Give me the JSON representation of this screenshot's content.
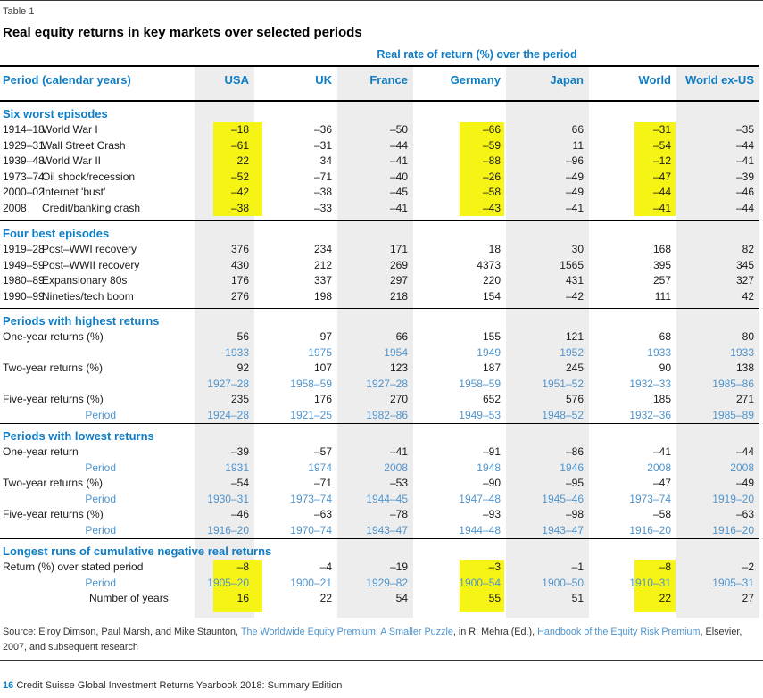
{
  "table": {
    "label": "Table 1",
    "title": "Real equity returns in key markets over selected periods",
    "spanner": "Real rate of return (%) over the period",
    "columns": [
      "Period (calendar years)",
      "USA",
      "UK",
      "France",
      "Germany",
      "Japan",
      "World",
      "World ex-US"
    ],
    "highlight_color": "#f6f414",
    "accent_color": "#0f7dc5",
    "year_color": "#4f94cd",
    "sections": [
      {
        "header": "Six worst episodes",
        "pad": 5,
        "rows": [
          {
            "kind": "event",
            "period": "1914–18:",
            "label": "World War I",
            "values": [
              "–18",
              "–36",
              "–50",
              "–66",
              "66",
              "–31",
              "–35"
            ],
            "hl": [
              0,
              3,
              5
            ]
          },
          {
            "kind": "event",
            "period": "1929–31:",
            "label": "Wall Street Crash",
            "values": [
              "–61",
              "–31",
              "–44",
              "–59",
              "11",
              "–54",
              "–44"
            ],
            "hl": [
              0,
              3,
              5
            ]
          },
          {
            "kind": "event",
            "period": "1939–48:",
            "label": "World War II",
            "values": [
              "22",
              "34",
              "–41",
              "–88",
              "–96",
              "–12",
              "–41"
            ],
            "hl": [
              0,
              3,
              5
            ]
          },
          {
            "kind": "event",
            "period": "1973–74:",
            "label": "Oil shock/recession",
            "values": [
              "–52",
              "–71",
              "–40",
              "–26",
              "–49",
              "–47",
              "–39"
            ],
            "hl": [
              0,
              3,
              5
            ]
          },
          {
            "kind": "event",
            "period": "2000–02:",
            "label": "Internet 'bust'",
            "values": [
              "–42",
              "–38",
              "–45",
              "–58",
              "–49",
              "–44",
              "–46"
            ],
            "hl": [
              0,
              3,
              5
            ]
          },
          {
            "kind": "event",
            "period": "2008",
            "label": "Credit/banking crash",
            "values": [
              "–38",
              "–33",
              "–41",
              "–43",
              "–41",
              "–41",
              "–44"
            ],
            "hl": [
              0,
              3,
              5
            ]
          }
        ]
      },
      {
        "header": "Four best episodes",
        "pad": 4,
        "rows": [
          {
            "kind": "event",
            "period": "1919–28:",
            "label": "Post–WWI recovery",
            "values": [
              "376",
              "234",
              "171",
              "18",
              "30",
              "168",
              "82"
            ]
          },
          {
            "kind": "event",
            "period": "1949–59:",
            "label": "Post–WWII recovery",
            "values": [
              "430",
              "212",
              "269",
              "4373",
              "1565",
              "395",
              "345"
            ]
          },
          {
            "kind": "event",
            "period": "1980–89:",
            "label": "Expansionary 80s",
            "values": [
              "176",
              "337",
              "297",
              "220",
              "431",
              "257",
              "327"
            ]
          },
          {
            "kind": "event",
            "period": "1990–99:",
            "label": "Nineties/tech boom",
            "values": [
              "276",
              "198",
              "218",
              "154",
              "–42",
              "111",
              "42"
            ]
          }
        ]
      },
      {
        "header": "Periods with highest returns",
        "pad": 0,
        "rows": [
          {
            "kind": "metric",
            "label": "One-year returns (%)",
            "values": [
              "56",
              "97",
              "66",
              "155",
              "121",
              "68",
              "80"
            ]
          },
          {
            "kind": "years",
            "label": "",
            "values": [
              "1933",
              "1975",
              "1954",
              "1949",
              "1952",
              "1933",
              "1933"
            ]
          },
          {
            "kind": "metric",
            "label": "Two-year returns (%)",
            "values": [
              "92",
              "107",
              "123",
              "187",
              "245",
              "90",
              "138"
            ]
          },
          {
            "kind": "years",
            "label": "",
            "values": [
              "1927–28",
              "1958–59",
              "1927–28",
              "1958–59",
              "1951–52",
              "1932–33",
              "1985–86"
            ]
          },
          {
            "kind": "metric",
            "label": "Five-year returns (%)",
            "values": [
              "235",
              "176",
              "270",
              "652",
              "576",
              "185",
              "271"
            ]
          },
          {
            "kind": "years",
            "label": "Period",
            "values": [
              "1924–28",
              "1921–25",
              "1982–86",
              "1949–53",
              "1948–52",
              "1932–36",
              "1985–89"
            ]
          }
        ]
      },
      {
        "header": "Periods with lowest returns",
        "pad": 0,
        "rows": [
          {
            "kind": "metric",
            "label": "One-year return",
            "values": [
              "–39",
              "–57",
              "–41",
              "–91",
              "–86",
              "–41",
              "–44"
            ]
          },
          {
            "kind": "years",
            "label": "Period",
            "values": [
              "1931",
              "1974",
              "2008",
              "1948",
              "1946",
              "2008",
              "2008"
            ]
          },
          {
            "kind": "metric",
            "label": "Two-year returns (%)",
            "values": [
              "–54",
              "–71",
              "–53",
              "–90",
              "–95",
              "–47",
              "–49"
            ]
          },
          {
            "kind": "years",
            "label": "Period",
            "values": [
              "1930–31",
              "1973–74",
              "1944–45",
              "1947–48",
              "1945–46",
              "1973–74",
              "1919–20"
            ]
          },
          {
            "kind": "metric",
            "label": "Five-year returns (%)",
            "values": [
              "–46",
              "–63",
              "–78",
              "–93",
              "–98",
              "–58",
              "–63"
            ]
          },
          {
            "kind": "years",
            "label": "Period",
            "values": [
              "1916–20",
              "1970–74",
              "1943–47",
              "1944–48",
              "1943–47",
              "1916–20",
              "1916–20"
            ]
          }
        ]
      },
      {
        "header": "Longest runs of cumulative negative real returns",
        "pad": 0,
        "rows": [
          {
            "kind": "metric",
            "label": "Return (%) over stated period",
            "values": [
              "–8",
              "–4",
              "–19",
              "–3",
              "–1",
              "–8",
              "–2"
            ],
            "hl": [
              0,
              3,
              5
            ]
          },
          {
            "kind": "years",
            "label": "Period",
            "values": [
              "1905–20",
              "1900–21",
              "1929–82",
              "1900–54",
              "1900–50",
              "1910–31",
              "1905–31"
            ],
            "hl": [
              0,
              3,
              5
            ]
          },
          {
            "kind": "metric",
            "indent": true,
            "label": "Number of years",
            "values": [
              "16",
              "22",
              "54",
              "55",
              "51",
              "22",
              "27"
            ],
            "hl": [
              0,
              3,
              5
            ]
          }
        ]
      }
    ],
    "tail_highlight": [
      0,
      3,
      5
    ]
  },
  "source": {
    "segments": [
      {
        "text": "Source: Elroy Dimson, Paul Marsh, and Mike Staunton, ",
        "link": false
      },
      {
        "text": "The Worldwide Equity Premium: A Smaller Puzzle",
        "link": true
      },
      {
        "text": ", in R. Mehra (Ed.), ",
        "link": false
      },
      {
        "text": "Handbook of the Equity Risk Premium",
        "link": true
      },
      {
        "text": ", Elsevier, 2007, and subsequent research",
        "link": false
      }
    ]
  },
  "footer": {
    "page_number": "16",
    "text": "Credit Suisse Global Investment Returns Yearbook 2018: Summary Edition"
  }
}
